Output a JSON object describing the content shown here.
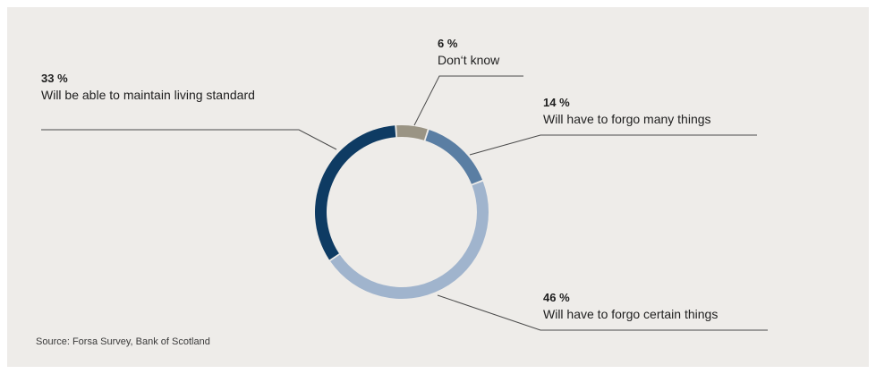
{
  "chart_data": {
    "type": "pie",
    "slices": [
      {
        "pct_label": "6 %",
        "label": "Don‘t know",
        "value": 6,
        "color": "#9a9484"
      },
      {
        "pct_label": "14 %",
        "label": "Will have to forgo many things",
        "value": 14,
        "color": "#5a7ea3"
      },
      {
        "pct_label": "46 %",
        "label": "Will have to forgo certain things",
        "value": 46,
        "color": "#a0b4cd"
      },
      {
        "pct_label": "33 %",
        "label": "Will be able to maintain living standard",
        "value": 33,
        "color": "#0e3b63"
      }
    ],
    "source": "Source: Forsa Survey, Bank of Scotland"
  }
}
